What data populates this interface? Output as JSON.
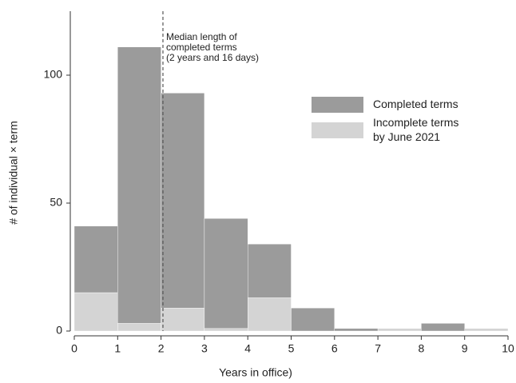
{
  "chart_data": {
    "type": "histogram",
    "x_label": "Years in office)",
    "y_label": "# of individual × term",
    "bins": [
      0,
      1,
      2,
      3,
      4,
      5,
      6,
      7,
      8,
      9,
      10
    ],
    "series": [
      {
        "name": "Completed terms",
        "color": "#9b9b9b",
        "values": [
          26,
          108,
          84,
          43,
          21,
          9,
          1,
          0,
          3,
          0
        ]
      },
      {
        "name": "Incomplete terms\nby June 2021",
        "color": "#d4d4d4",
        "values": [
          15,
          3,
          9,
          1,
          13,
          0,
          0,
          1,
          0,
          1
        ]
      }
    ],
    "stack_bottom_series": 1,
    "xlim": [
      0,
      10
    ],
    "xticks": [
      0,
      1,
      2,
      3,
      4,
      5,
      6,
      7,
      8,
      9,
      10
    ],
    "ylim": [
      0,
      125
    ],
    "yticks": [
      0,
      50,
      100
    ],
    "annotation": {
      "x": 2.044,
      "lines": [
        "Median length of",
        "completed terms",
        "(2 years and 16 days)"
      ]
    }
  }
}
